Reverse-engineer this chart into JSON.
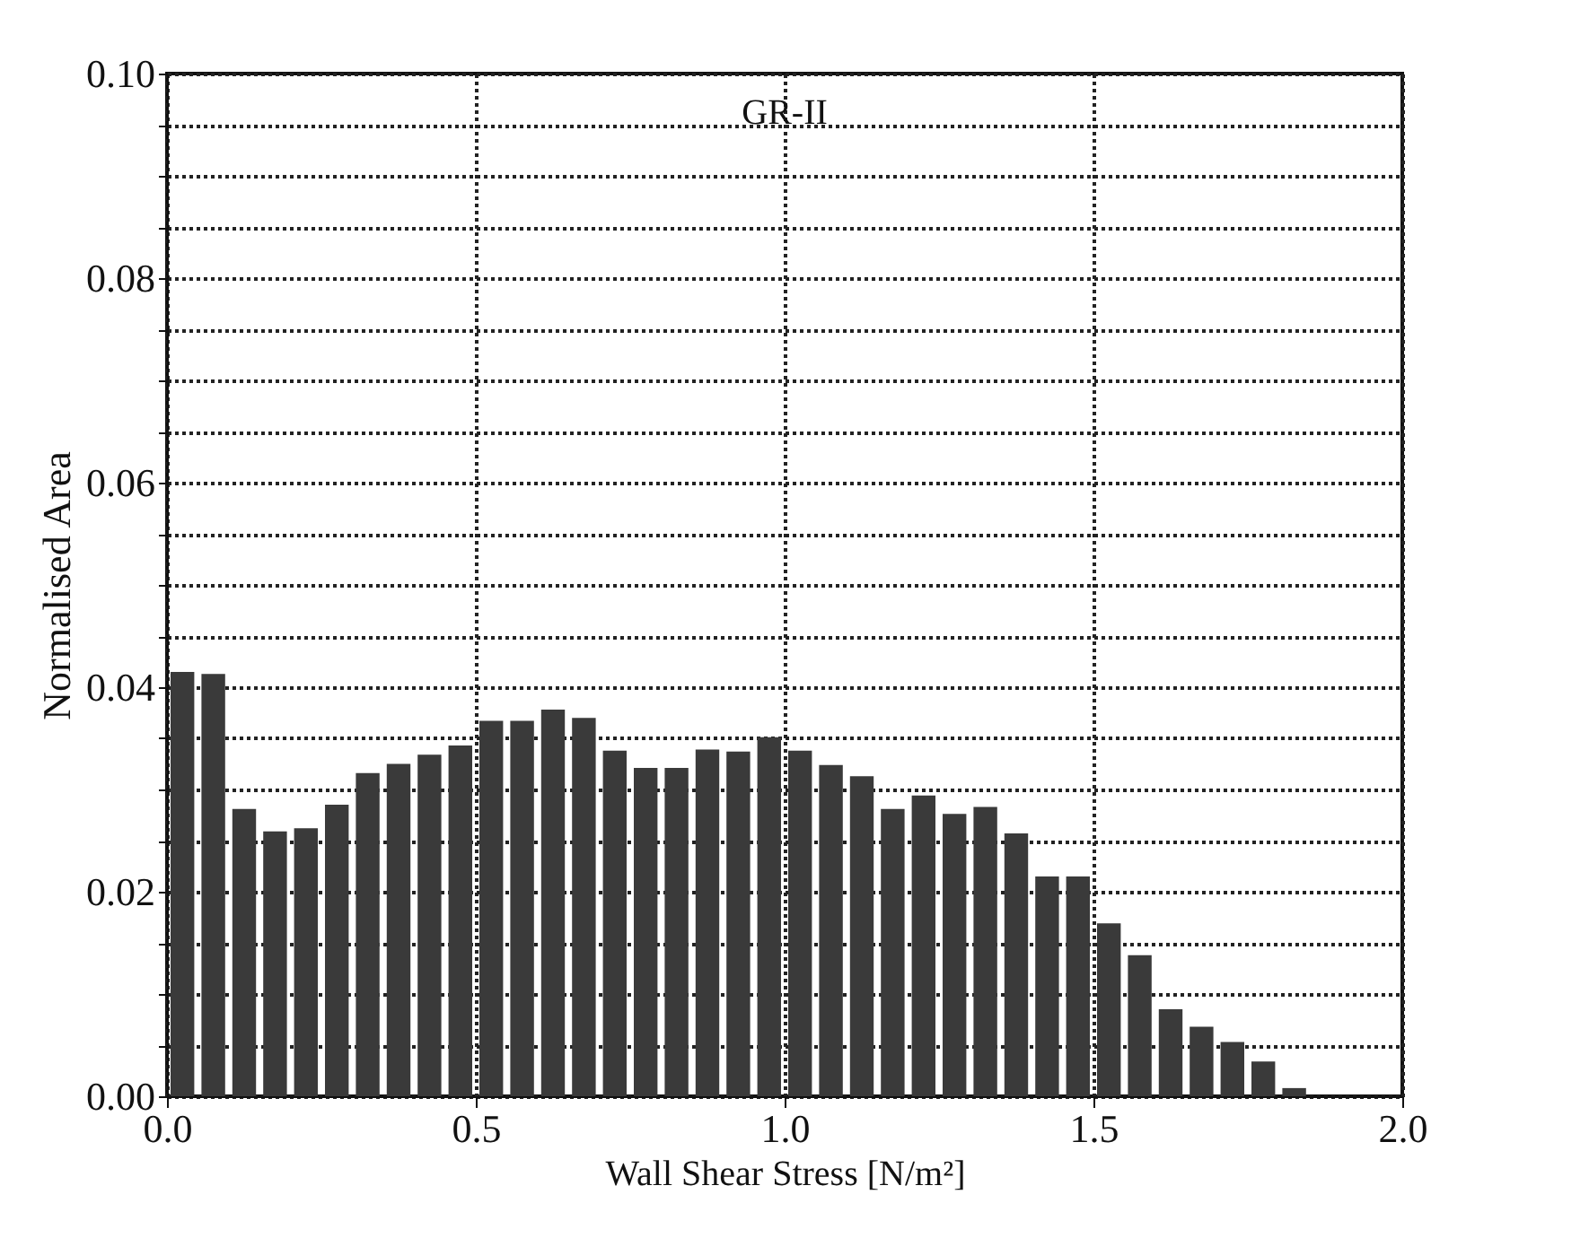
{
  "chart_data": {
    "type": "histogram",
    "xlabel": "Wall Shear Stress [N/m²]",
    "ylabel": "Normalised Area",
    "annotations": [
      "GR-II"
    ],
    "bins": [
      0,
      0.05,
      0.1,
      0.15,
      0.2,
      0.25,
      0.3,
      0.35,
      0.4,
      0.45,
      0.5,
      0.55,
      0.6,
      0.65,
      0.7,
      0.75,
      0.8,
      0.85,
      0.9,
      0.95,
      1.0,
      1.05,
      1.1,
      1.15,
      1.2,
      1.25,
      1.3,
      1.35,
      1.4,
      1.45,
      1.5,
      1.55,
      1.6,
      1.65,
      1.7,
      1.75,
      1.8,
      1.85,
      1.9,
      1.95,
      2.0
    ],
    "values": [
      0.0415,
      0.0413,
      0.0281,
      0.0259,
      0.0262,
      0.0285,
      0.0316,
      0.0325,
      0.0334,
      0.0343,
      0.0367,
      0.0367,
      0.0378,
      0.037,
      0.0338,
      0.0321,
      0.0321,
      0.0339,
      0.0337,
      0.0351,
      0.0338,
      0.0324,
      0.0313,
      0.0281,
      0.0294,
      0.0276,
      0.0283,
      0.0257,
      0.0215,
      0.0215,
      0.0169,
      0.0138,
      0.0085,
      0.0068,
      0.0053,
      0.0034,
      0.0008,
      0,
      0,
      0
    ],
    "color": "#3a3a3a",
    "xlim": [
      0,
      2.0
    ],
    "xticks": [
      {
        "value": 0,
        "label": "0.0"
      },
      {
        "value": 0.5,
        "label": "0.5"
      },
      {
        "value": 1.0,
        "label": "1.0"
      },
      {
        "value": 1.5,
        "label": "1.5"
      },
      {
        "value": 2.0,
        "label": "2.0"
      }
    ],
    "ylim": [
      0,
      0.1
    ],
    "yticks": [
      {
        "value": 0,
        "label": "0.00"
      },
      {
        "value": 0.005,
        "label": null
      },
      {
        "value": 0.01,
        "label": null
      },
      {
        "value": 0.015,
        "label": null
      },
      {
        "value": 0.02,
        "label": "0.02"
      },
      {
        "value": 0.025,
        "label": null
      },
      {
        "value": 0.03,
        "label": null
      },
      {
        "value": 0.035,
        "label": null
      },
      {
        "value": 0.04,
        "label": "0.04"
      },
      {
        "value": 0.045,
        "label": null
      },
      {
        "value": 0.05,
        "label": null
      },
      {
        "value": 0.055,
        "label": null
      },
      {
        "value": 0.06,
        "label": "0.06"
      },
      {
        "value": 0.065,
        "label": null
      },
      {
        "value": 0.07,
        "label": null
      },
      {
        "value": 0.075,
        "label": null
      },
      {
        "value": 0.08,
        "label": "0.08"
      },
      {
        "value": 0.085,
        "label": null
      },
      {
        "value": 0.09,
        "label": null
      },
      {
        "value": 0.095,
        "label": null
      },
      {
        "value": 0.1,
        "label": "0.10"
      }
    ],
    "grid": true
  }
}
